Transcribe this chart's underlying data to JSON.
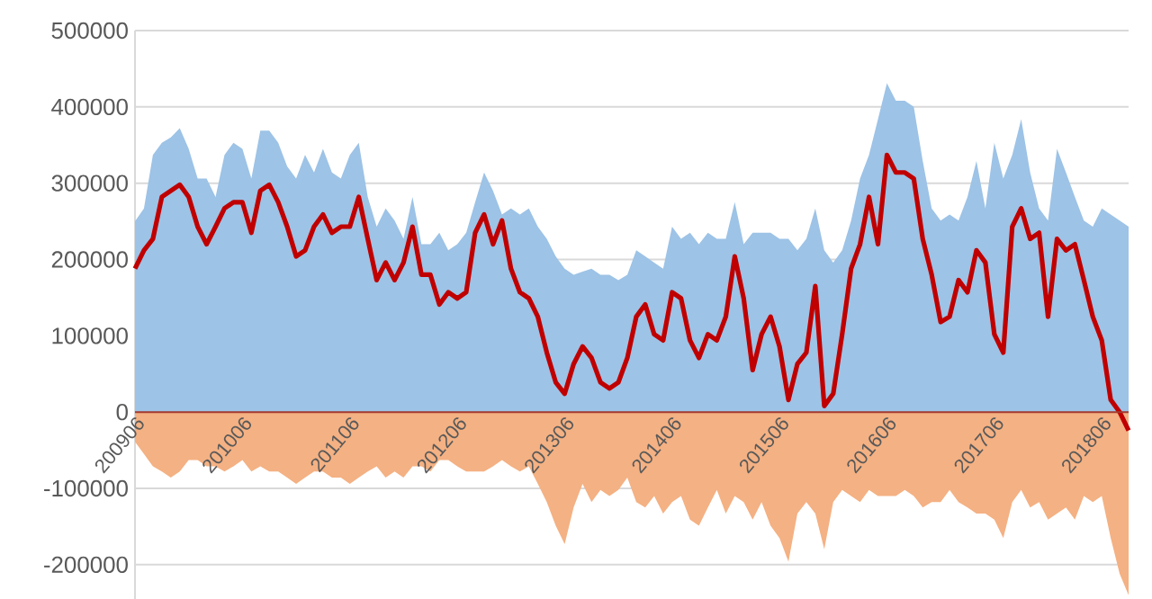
{
  "chart_data": {
    "type": "area",
    "categories": [
      "200906",
      null,
      null,
      null,
      null,
      null,
      null,
      null,
      null,
      null,
      null,
      null,
      "201006",
      null,
      null,
      null,
      null,
      null,
      null,
      null,
      null,
      null,
      null,
      null,
      "201106",
      null,
      null,
      null,
      null,
      null,
      null,
      null,
      null,
      null,
      null,
      null,
      "201206",
      null,
      null,
      null,
      null,
      null,
      null,
      null,
      null,
      null,
      null,
      null,
      "201306",
      null,
      null,
      null,
      null,
      null,
      null,
      null,
      null,
      null,
      null,
      null,
      "201406",
      null,
      null,
      null,
      null,
      null,
      null,
      null,
      null,
      null,
      null,
      null,
      "201506",
      null,
      null,
      null,
      null,
      null,
      null,
      null,
      null,
      null,
      null,
      null,
      "201606",
      null,
      null,
      null,
      null,
      null,
      null,
      null,
      null,
      null,
      null,
      null,
      "201706",
      null,
      null,
      null,
      null,
      null,
      null,
      null,
      null,
      null,
      null,
      null,
      "201806",
      null,
      null,
      null
    ],
    "series": [
      {
        "color": "#9dc3e6",
        "values": [
          250000,
          267000,
          337000,
          353000,
          360000,
          372000,
          345000,
          306000,
          306000,
          282000,
          337000,
          353000,
          345000,
          306000,
          369000,
          369000,
          353000,
          322000,
          306000,
          337000,
          314000,
          345000,
          314000,
          306000,
          337000,
          353000,
          282000,
          243000,
          267000,
          251000,
          227000,
          282000,
          220000,
          220000,
          235000,
          212000,
          220000,
          235000,
          275000,
          314000,
          290000,
          259000,
          267000,
          259000,
          267000,
          243000,
          227000,
          204000,
          188000,
          180000,
          184000,
          188000,
          180000,
          180000,
          173000,
          180000,
          212000,
          204000,
          196000,
          188000,
          243000,
          227000,
          235000,
          220000,
          235000,
          227000,
          227000,
          275000,
          220000,
          235000,
          235000,
          235000,
          227000,
          227000,
          212000,
          227000,
          267000,
          212000,
          196000,
          212000,
          251000,
          306000,
          337000,
          384000,
          431000,
          408000,
          408000,
          400000,
          329000,
          267000,
          251000,
          259000,
          251000,
          282000,
          329000,
          267000,
          353000,
          306000,
          337000,
          384000,
          314000,
          267000,
          251000,
          345000,
          314000,
          282000,
          251000,
          243000,
          267000,
          259000,
          251000,
          243000
        ]
      },
      {
        "color": "#f4b183",
        "values": [
          -39000,
          -55000,
          -71000,
          -78000,
          -86000,
          -78000,
          -63000,
          -63000,
          -71000,
          -71000,
          -78000,
          -71000,
          -63000,
          -78000,
          -71000,
          -78000,
          -78000,
          -86000,
          -94000,
          -86000,
          -78000,
          -78000,
          -86000,
          -86000,
          -94000,
          -86000,
          -78000,
          -71000,
          -86000,
          -78000,
          -86000,
          -71000,
          -71000,
          -78000,
          -63000,
          -63000,
          -71000,
          -78000,
          -78000,
          -78000,
          -71000,
          -63000,
          -71000,
          -78000,
          -71000,
          -94000,
          -118000,
          -149000,
          -173000,
          -125000,
          -94000,
          -118000,
          -102000,
          -110000,
          -102000,
          -86000,
          -118000,
          -125000,
          -110000,
          -133000,
          -118000,
          -110000,
          -141000,
          -149000,
          -125000,
          -102000,
          -133000,
          -110000,
          -118000,
          -141000,
          -118000,
          -149000,
          -165000,
          -196000,
          -133000,
          -118000,
          -133000,
          -180000,
          -118000,
          -102000,
          -110000,
          -118000,
          -102000,
          -110000,
          -110000,
          -110000,
          -102000,
          -110000,
          -125000,
          -118000,
          -118000,
          -102000,
          -118000,
          -125000,
          -133000,
          -133000,
          -141000,
          -165000,
          -118000,
          -102000,
          -125000,
          -118000,
          -141000,
          -133000,
          -125000,
          -141000,
          -110000,
          -118000,
          -110000,
          -165000,
          -212000,
          -240000
        ]
      },
      {
        "type": "line",
        "color": "#c00000",
        "values": [
          188000,
          212000,
          227000,
          282000,
          290000,
          298000,
          282000,
          243000,
          220000,
          243000,
          267000,
          275000,
          275000,
          235000,
          290000,
          298000,
          275000,
          243000,
          204000,
          212000,
          243000,
          259000,
          235000,
          243000,
          243000,
          282000,
          227000,
          173000,
          196000,
          173000,
          196000,
          243000,
          180000,
          180000,
          141000,
          157000,
          149000,
          157000,
          235000,
          259000,
          220000,
          251000,
          188000,
          157000,
          149000,
          125000,
          78000,
          39000,
          24000,
          63000,
          86000,
          71000,
          39000,
          31000,
          39000,
          71000,
          125000,
          141000,
          102000,
          94000,
          157000,
          149000,
          94000,
          71000,
          102000,
          94000,
          125000,
          204000,
          149000,
          55000,
          102000,
          125000,
          86000,
          16000,
          63000,
          78000,
          165000,
          8000,
          24000,
          102000,
          188000,
          220000,
          282000,
          220000,
          337000,
          314000,
          314000,
          306000,
          227000,
          180000,
          118000,
          125000,
          173000,
          157000,
          212000,
          196000,
          102000,
          78000,
          243000,
          267000,
          227000,
          235000,
          125000,
          227000,
          212000,
          220000,
          173000,
          125000,
          94000,
          16000,
          0,
          -24000
        ]
      }
    ],
    "ylim": [
      -245000,
      500000
    ],
    "yticks": [
      -200000,
      -100000,
      0,
      100000,
      200000,
      300000,
      400000,
      500000
    ],
    "grid": "y"
  }
}
